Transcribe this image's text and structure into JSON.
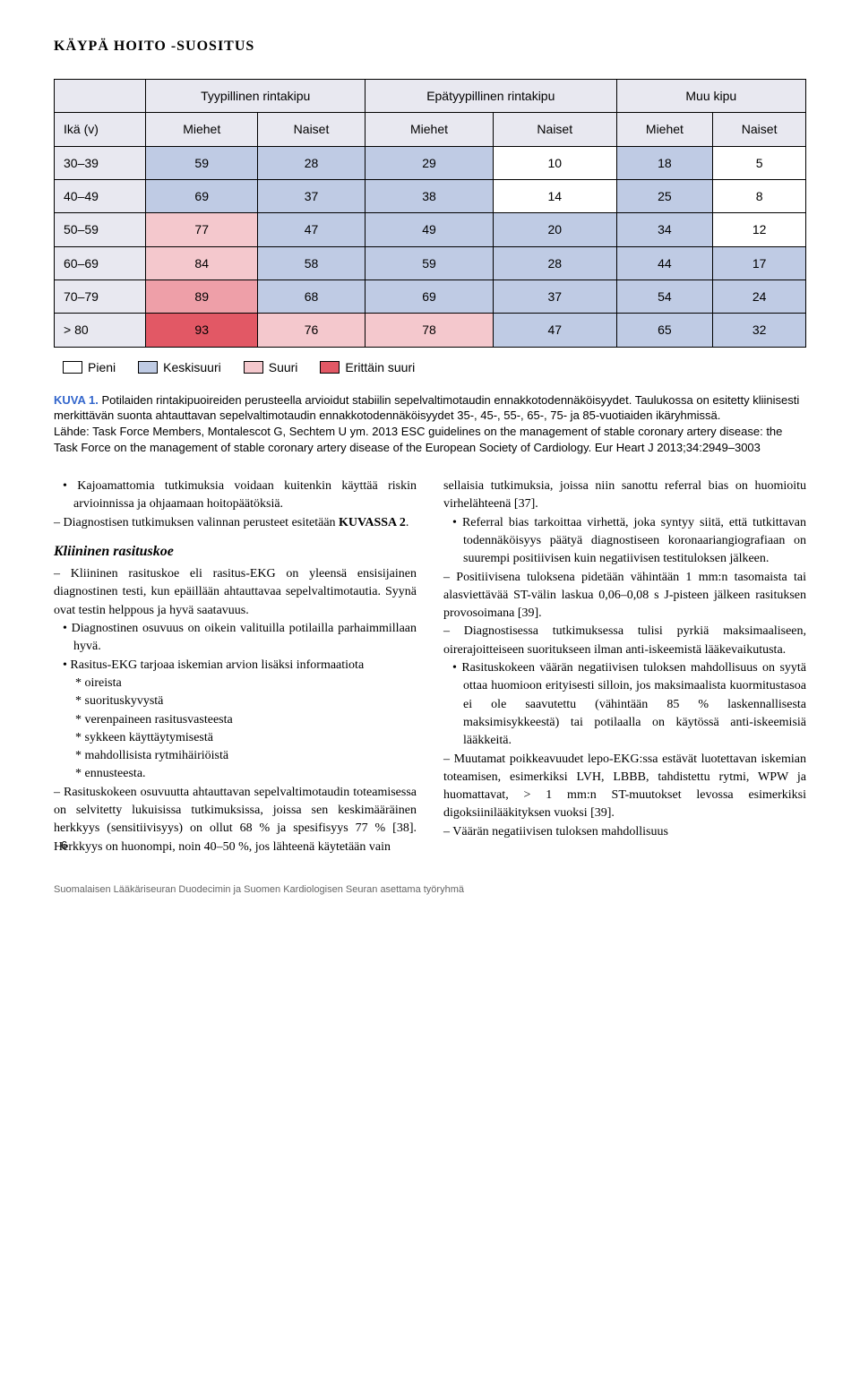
{
  "header": "KÄYPÄ HOITO -SUOSITUS",
  "colors": {
    "bg_header_light": "#e8e8f0",
    "bg_white": "#ffffff",
    "bg_blue": "#bfcbe4",
    "bg_pink_light": "#f4c8cd",
    "bg_pink_mid": "#ee9fa8",
    "bg_red": "#e25865"
  },
  "table": {
    "group_headers": [
      "Tyypillinen rintakipu",
      "Epätyypillinen rintakipu",
      "Muu kipu"
    ],
    "col_headers": [
      "Ikä (v)",
      "Miehet",
      "Naiset",
      "Miehet",
      "Naiset",
      "Miehet",
      "Naiset"
    ],
    "rows": [
      {
        "label": "30–39",
        "cells": [
          {
            "v": "59",
            "c": "bg_blue"
          },
          {
            "v": "28",
            "c": "bg_blue"
          },
          {
            "v": "29",
            "c": "bg_blue"
          },
          {
            "v": "10",
            "c": "bg_white"
          },
          {
            "v": "18",
            "c": "bg_blue"
          },
          {
            "v": "5",
            "c": "bg_white"
          }
        ]
      },
      {
        "label": "40–49",
        "cells": [
          {
            "v": "69",
            "c": "bg_blue"
          },
          {
            "v": "37",
            "c": "bg_blue"
          },
          {
            "v": "38",
            "c": "bg_blue"
          },
          {
            "v": "14",
            "c": "bg_white"
          },
          {
            "v": "25",
            "c": "bg_blue"
          },
          {
            "v": "8",
            "c": "bg_white"
          }
        ]
      },
      {
        "label": "50–59",
        "cells": [
          {
            "v": "77",
            "c": "bg_pink_light"
          },
          {
            "v": "47",
            "c": "bg_blue"
          },
          {
            "v": "49",
            "c": "bg_blue"
          },
          {
            "v": "20",
            "c": "bg_blue"
          },
          {
            "v": "34",
            "c": "bg_blue"
          },
          {
            "v": "12",
            "c": "bg_white"
          }
        ]
      },
      {
        "label": "60–69",
        "cells": [
          {
            "v": "84",
            "c": "bg_pink_light"
          },
          {
            "v": "58",
            "c": "bg_blue"
          },
          {
            "v": "59",
            "c": "bg_blue"
          },
          {
            "v": "28",
            "c": "bg_blue"
          },
          {
            "v": "44",
            "c": "bg_blue"
          },
          {
            "v": "17",
            "c": "bg_blue"
          }
        ]
      },
      {
        "label": "70–79",
        "cells": [
          {
            "v": "89",
            "c": "bg_pink_mid"
          },
          {
            "v": "68",
            "c": "bg_blue"
          },
          {
            "v": "69",
            "c": "bg_blue"
          },
          {
            "v": "37",
            "c": "bg_blue"
          },
          {
            "v": "54",
            "c": "bg_blue"
          },
          {
            "v": "24",
            "c": "bg_blue"
          }
        ]
      },
      {
        "label": "> 80",
        "cells": [
          {
            "v": "93",
            "c": "bg_red"
          },
          {
            "v": "76",
            "c": "bg_pink_light"
          },
          {
            "v": "78",
            "c": "bg_pink_light"
          },
          {
            "v": "47",
            "c": "bg_blue"
          },
          {
            "v": "65",
            "c": "bg_blue"
          },
          {
            "v": "32",
            "c": "bg_blue"
          }
        ]
      }
    ]
  },
  "legend": [
    {
      "label": "Pieni",
      "color": "bg_white"
    },
    {
      "label": "Keskisuuri",
      "color": "bg_blue"
    },
    {
      "label": "Suuri",
      "color": "bg_pink_light"
    },
    {
      "label": "Erittäin suuri",
      "color": "bg_red"
    }
  ],
  "caption": {
    "kuva": "KUVA 1.",
    "text1": " Potilaiden rintakipuoireiden perusteella arvioidut stabiilin sepelvaltimotaudin ennakkotodennäköisyydet. Taulukossa on esitetty kliinisesti merkittävän suonta ahtauttavan sepelvaltimotaudin ennakkotodennäköisyydet 35-, 45-, 55-, 65-, 75- ja 85-vuotiaiden ikäryhmissä.",
    "text2": "Lähde: Task Force Members, Montalescot G, Sechtem U ym. 2013 ESC guidelines on the management of stable coronary artery disease: the Task Force on the management of stable coronary artery disease of the European Society of Cardiology. Eur Heart J 2013;34:2949–3003"
  },
  "left_col": [
    {
      "cls": "ind1 li-bullet",
      "t": "Kajoamattomia tutkimuksia voidaan kuitenkin käyttää riskin arvioinnissa ja ohjaamaan hoitopäätöksiä."
    },
    {
      "cls": "li-dash",
      "t": "Diagnostisen tutkimuksen valinnan perusteet esitetään ",
      "after": "KUVASSA 2",
      "after_cls": "small-caps",
      "tail": "."
    },
    {
      "cls": "italic-head",
      "t": "Kliininen rasituskoe"
    },
    {
      "cls": "li-dash",
      "t": "Kliininen rasituskoe eli rasitus-EKG on yleensä ensisijainen diagnostinen testi, kun epäillään ahtauttavaa sepelvaltimotautia. Syynä ovat testin helppous ja hyvä saatavuus."
    },
    {
      "cls": "ind1 li-bullet",
      "t": "Diagnostinen osuvuus on oikein valituilla potilailla parhaimmillaan hyvä."
    },
    {
      "cls": "ind1 li-bullet",
      "t": "Rasitus-EKG tarjoaa iskemian arvion lisäksi informaatiota"
    },
    {
      "cls": "ind2 li-star",
      "t": "oireista"
    },
    {
      "cls": "ind2 li-star",
      "t": "suorituskyvystä"
    },
    {
      "cls": "ind2 li-star",
      "t": "verenpaineen rasitusvasteesta"
    },
    {
      "cls": "ind2 li-star",
      "t": "sykkeen käyttäytymisestä"
    },
    {
      "cls": "ind2 li-star",
      "t": "mahdollisista rytmihäiriöistä"
    },
    {
      "cls": "ind2 li-star",
      "t": "ennusteesta."
    },
    {
      "cls": "li-dash",
      "t": "Rasituskokeen osuvuutta ahtauttavan sepelvaltimotaudin toteamisessa on selvitetty lukuisissa tutkimuksissa, joissa sen keskimääräinen herkkyys (sensitiivisyys) on ollut 68 % ja spesifisyys 77 % [38]. Herkkyys on huonompi, noin 40–50 %, jos lähteenä käytetään vain"
    }
  ],
  "right_col": [
    {
      "cls": "",
      "t": "sellaisia tutkimuksia, joissa niin sanottu referral bias on huomioitu virhelähteenä [37]."
    },
    {
      "cls": "ind1 li-bullet",
      "t": "Referral bias tarkoittaa virhettä, joka syntyy siitä, että tutkittavan todennäköisyys päätyä diagnostiseen koronaariangiografiaan on suurempi positiivisen kuin negatiivisen testituloksen jälkeen."
    },
    {
      "cls": "li-dash",
      "t": "Positiivisena tuloksena pidetään vähintään 1 mm:n tasomaista tai alasviettävää ST-välin laskua 0,06–0,08 s J-pisteen jälkeen rasituksen provosoimana [39]."
    },
    {
      "cls": "li-dash",
      "t": "Diagnostisessa tutkimuksessa tulisi pyrkiä maksimaaliseen, oirerajoitteiseen suoritukseen ilman anti-iskeemistä lääkevaikutusta."
    },
    {
      "cls": "ind1 li-bullet",
      "t": "Rasituskokeen väärän negatiivisen tuloksen mahdollisuus on syytä ottaa huomioon erityisesti silloin, jos maksimaalista kuormitustasoa ei ole saavutettu (vähintään 85 % laskennallisesta maksimisykkeestä) tai potilaalla on käytössä anti-iskeemisiä lääkkeitä."
    },
    {
      "cls": "li-dash",
      "t": "Muutamat poikkeavuudet lepo-EKG:ssa estävät luotettavan iskemian toteamisen, esimerkiksi LVH, LBBB, tahdistettu rytmi, WPW ja huomattavat, > 1 mm:n ST-muutokset levossa esimerkiksi digoksiinilääkityksen vuoksi [39]."
    },
    {
      "cls": "li-dash",
      "t": "Väärän negatiivisen tuloksen mahdollisuus"
    }
  ],
  "page_number": "6",
  "footer": "Suomalaisen Lääkäriseuran Duodecimin ja Suomen Kardiologisen Seuran asettama työryhmä"
}
